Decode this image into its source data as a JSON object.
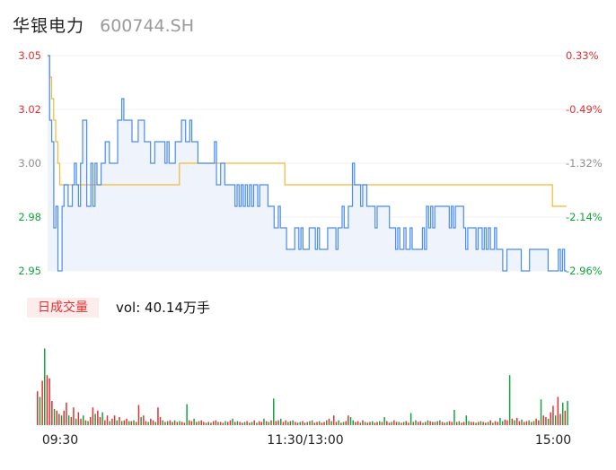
{
  "header": {
    "name": "华银电力",
    "code": "600744.SH"
  },
  "volume_panel": {
    "tag": "日成交量",
    "vol_prefix": "vol: ",
    "vol_value": "40.14万手"
  },
  "colors": {
    "price": "#4a8bf5",
    "avg": "#f5b733",
    "up": "#e0302f",
    "down": "#12a33c",
    "area": "#eef3fc"
  },
  "chart_data": [
    {
      "type": "line",
      "y_ticks_left": [
        "3.05",
        "3.02",
        "3.00",
        "2.98",
        "2.95"
      ],
      "y_ticks_right": [
        "0.33%",
        "-0.49%",
        "-1.32%",
        "-2.14%",
        "-2.96%"
      ],
      "ylim": [
        2.95,
        3.05
      ],
      "x_ticks": [
        "09:30",
        "11:30/13:00",
        "15:00"
      ],
      "series": [
        {
          "values": [
            3.05,
            3.02,
            3.01,
            2.97,
            2.98,
            2.95,
            2.95,
            2.98,
            2.99,
            2.99,
            2.98,
            2.98,
            2.99,
            3.0,
            2.99,
            2.98,
            3.0,
            3.02,
            3.02,
            2.98,
            2.98,
            3.0,
            2.98,
            3.0,
            2.99,
            2.99,
            3.0,
            3.0,
            3.01,
            3.01,
            3.0,
            3.0,
            3.0,
            3.0,
            3.02,
            3.02,
            3.03,
            3.02,
            3.02,
            3.02,
            3.02,
            3.01,
            3.01,
            3.01,
            3.02,
            3.02,
            3.02,
            3.01,
            3.01,
            3.01,
            3.0,
            3.0,
            3.01,
            3.01,
            3.01,
            3.01,
            3.01,
            3.0,
            3.01,
            3.0,
            3.0,
            3.0,
            3.01,
            3.01,
            3.01,
            3.02,
            3.02,
            3.01,
            3.01,
            3.02,
            3.01,
            3.01,
            3.01,
            3.0,
            3.0,
            3.0,
            3.0,
            3.0,
            3.0,
            3.0,
            3.0,
            3.01,
            2.99,
            2.99,
            3.0,
            3.0,
            2.99,
            2.99,
            2.99,
            2.99,
            2.99,
            2.98,
            2.99,
            2.98,
            2.99,
            2.98,
            2.99,
            2.98,
            2.99,
            2.98,
            2.99,
            2.99,
            2.98,
            2.99,
            2.99,
            2.99,
            2.99,
            2.98,
            2.98,
            2.98,
            2.97,
            2.97,
            2.98,
            2.97,
            2.97,
            2.97,
            2.96,
            2.96,
            2.96,
            2.96,
            2.97,
            2.97,
            2.96,
            2.97,
            2.96,
            2.96,
            2.96,
            2.97,
            2.97,
            2.97,
            2.96,
            2.97,
            2.96,
            2.96,
            2.96,
            2.96,
            2.97,
            2.97,
            2.97,
            2.97,
            2.96,
            2.97,
            2.97,
            2.98,
            2.97,
            2.97,
            2.98,
            2.98,
            3.0,
            2.99,
            2.99,
            2.99,
            2.98,
            2.99,
            2.99,
            2.98,
            2.98,
            2.98,
            2.98,
            2.97,
            2.98,
            2.98,
            2.98,
            2.98,
            2.98,
            2.98,
            2.97,
            2.97,
            2.97,
            2.96,
            2.97,
            2.96,
            2.96,
            2.97,
            2.96,
            2.96,
            2.97,
            2.96,
            2.96,
            2.96,
            2.96,
            2.96,
            2.97,
            2.96,
            2.98,
            2.97,
            2.98,
            2.97,
            2.98,
            2.98,
            2.98,
            2.98,
            2.98,
            2.98,
            2.98,
            2.97,
            2.98,
            2.97,
            2.98,
            2.98,
            2.98,
            2.98,
            2.97,
            2.96,
            2.97,
            2.97,
            2.97,
            2.97,
            2.96,
            2.97,
            2.97,
            2.96,
            2.97,
            2.96,
            2.97,
            2.96,
            2.96,
            2.97,
            2.96,
            2.96,
            2.96,
            2.95,
            2.95,
            2.96,
            2.96,
            2.96,
            2.96,
            2.96,
            2.96,
            2.96,
            2.95,
            2.95,
            2.95,
            2.95,
            2.96,
            2.96,
            2.96,
            2.96,
            2.96,
            2.96,
            2.96,
            2.96,
            2.96,
            2.95,
            2.95,
            2.95,
            2.95,
            2.95,
            2.96,
            2.95,
            2.96,
            2.95,
            2.95
          ]
        },
        {
          "values": [
            3.05,
            3.04,
            3.03,
            3.02,
            3.01,
            3.0,
            2.99,
            2.99,
            2.99,
            2.99,
            2.99,
            2.99,
            2.99,
            2.99,
            2.99,
            2.99,
            2.99,
            2.99,
            2.99,
            2.99,
            2.99,
            2.99,
            2.99,
            2.99,
            2.99,
            2.99,
            2.99,
            2.99,
            2.99,
            2.99,
            2.99,
            2.99,
            2.99,
            2.99,
            2.99,
            2.99,
            2.99,
            2.99,
            2.99,
            2.99,
            2.99,
            2.99,
            2.99,
            2.99,
            2.99,
            2.99,
            2.99,
            2.99,
            2.99,
            2.99,
            2.99,
            2.99,
            2.99,
            2.99,
            2.99,
            2.99,
            2.99,
            2.99,
            2.99,
            2.99,
            2.99,
            2.99,
            2.99,
            2.99,
            2.99,
            3.0,
            3.0,
            3.0,
            3.0,
            3.0,
            3.0,
            3.0,
            3.0,
            3.0,
            3.0,
            3.0,
            3.0,
            3.0,
            3.0,
            3.0,
            3.0,
            3.0,
            3.0,
            3.0,
            3.0,
            3.0,
            3.0,
            3.0,
            3.0,
            3.0,
            3.0,
            3.0,
            3.0,
            3.0,
            3.0,
            3.0,
            3.0,
            3.0,
            3.0,
            3.0,
            3.0,
            3.0,
            3.0,
            3.0,
            3.0,
            3.0,
            3.0,
            3.0,
            3.0,
            3.0,
            3.0,
            3.0,
            3.0,
            3.0,
            3.0,
            3.0,
            3.0,
            2.99,
            2.99,
            2.99,
            2.99,
            2.99,
            2.99,
            2.99,
            2.99,
            2.99,
            2.99,
            2.99,
            2.99,
            2.99,
            2.99,
            2.99,
            2.99,
            2.99,
            2.99,
            2.99,
            2.99,
            2.99,
            2.99,
            2.99,
            2.99,
            2.99,
            2.99,
            2.99,
            2.99,
            2.99,
            2.99,
            2.99,
            2.99,
            2.99,
            2.99,
            2.99,
            2.99,
            2.99,
            2.99,
            2.99,
            2.99,
            2.99,
            2.99,
            2.99,
            2.99,
            2.99,
            2.99,
            2.99,
            2.99,
            2.99,
            2.99,
            2.99,
            2.99,
            2.99,
            2.99,
            2.99,
            2.99,
            2.99,
            2.99,
            2.99,
            2.99,
            2.99,
            2.99,
            2.99,
            2.99,
            2.99,
            2.99,
            2.99,
            2.99,
            2.99,
            2.99,
            2.99,
            2.99,
            2.99,
            2.99,
            2.99,
            2.99,
            2.99,
            2.99,
            2.99,
            2.99,
            2.99,
            2.99,
            2.99,
            2.99,
            2.99,
            2.99,
            2.99,
            2.99,
            2.99,
            2.99,
            2.99,
            2.99,
            2.99,
            2.99,
            2.99,
            2.99,
            2.99,
            2.99,
            2.99,
            2.99,
            2.99,
            2.99,
            2.99,
            2.99,
            2.99,
            2.99,
            2.99,
            2.99,
            2.99,
            2.99,
            2.99,
            2.99,
            2.99,
            2.99,
            2.99,
            2.99,
            2.99,
            2.99,
            2.99,
            2.99,
            2.99,
            2.99,
            2.99,
            2.99,
            2.99,
            2.99,
            2.99,
            2.99,
            2.99,
            2.99,
            2.99,
            2.99,
            2.98,
            2.98,
            2.98,
            2.98,
            2.98,
            2.98,
            2.98,
            2.98
          ]
        }
      ]
    },
    {
      "type": "bar",
      "x_ticks": [
        "09:30",
        "11:30/13:00",
        "15:00"
      ],
      "volumes": [
        0.42,
        0.35,
        0.55,
        0.95,
        0.62,
        0.58,
        0.3,
        0.2,
        0.18,
        0.14,
        0.12,
        0.18,
        0.28,
        0.12,
        0.1,
        0.22,
        0.08,
        0.16,
        0.08,
        0.12,
        0.06,
        0.05,
        0.1,
        0.22,
        0.14,
        0.18,
        0.1,
        0.16,
        0.06,
        0.12,
        0.05,
        0.08,
        0.12,
        0.06,
        0.1,
        0.05,
        0.06,
        0.08,
        0.05,
        0.05,
        0.06,
        0.04,
        0.25,
        0.1,
        0.12,
        0.05,
        0.04,
        0.08,
        0.06,
        0.04,
        0.22,
        0.1,
        0.06,
        0.04,
        0.05,
        0.06,
        0.04,
        0.06,
        0.04,
        0.05,
        0.04,
        0.03,
        0.26,
        0.06,
        0.05,
        0.08,
        0.04,
        0.05,
        0.06,
        0.04,
        0.03,
        0.04,
        0.03,
        0.05,
        0.06,
        0.04,
        0.04,
        0.03,
        0.05,
        0.04,
        0.06,
        0.08,
        0.04,
        0.05,
        0.04,
        0.03,
        0.04,
        0.05,
        0.03,
        0.04,
        0.06,
        0.03,
        0.05,
        0.04,
        0.08,
        0.05,
        0.04,
        0.06,
        0.33,
        0.05,
        0.06,
        0.08,
        0.04,
        0.06,
        0.04,
        0.05,
        0.06,
        0.04,
        0.03,
        0.04,
        0.05,
        0.03,
        0.04,
        0.05,
        0.06,
        0.03,
        0.04,
        0.05,
        0.03,
        0.04,
        0.06,
        0.08,
        0.05,
        0.12,
        0.04,
        0.06,
        0.03,
        0.04,
        0.05,
        0.12,
        0.1,
        0.06,
        0.04,
        0.05,
        0.03,
        0.06,
        0.04,
        0.03,
        0.04,
        0.05,
        0.03,
        0.04,
        0.05,
        0.04,
        0.1,
        0.05,
        0.03,
        0.04,
        0.06,
        0.04,
        0.04,
        0.03,
        0.04,
        0.05,
        0.03,
        0.15,
        0.04,
        0.06,
        0.04,
        0.05,
        0.03,
        0.04,
        0.06,
        0.05,
        0.04,
        0.04,
        0.05,
        0.06,
        0.04,
        0.03,
        0.04,
        0.05,
        0.04,
        0.19,
        0.04,
        0.05,
        0.03,
        0.04,
        0.12,
        0.05,
        0.04,
        0.04,
        0.03,
        0.04,
        0.05,
        0.04,
        0.03,
        0.04,
        0.06,
        0.03,
        0.05,
        0.04,
        0.09,
        0.05,
        0.07,
        0.06,
        0.62,
        0.08,
        0.06,
        0.09,
        0.05,
        0.07,
        0.04,
        0.05,
        0.06,
        0.04,
        0.05,
        0.08,
        0.06,
        0.32,
        0.12,
        0.1,
        0.08,
        0.16,
        0.24,
        0.12,
        0.35,
        0.14,
        0.28,
        0.18,
        0.3
      ],
      "up": [
        true,
        false,
        true,
        false,
        true,
        true,
        true,
        false,
        true,
        true,
        false,
        true,
        true,
        false,
        true,
        true,
        false,
        true,
        true,
        false,
        true,
        false,
        true,
        true,
        false,
        true,
        true,
        false,
        true,
        true,
        false,
        true,
        true,
        false,
        true,
        false,
        true,
        true,
        false,
        true,
        false,
        true,
        true,
        false,
        true,
        true,
        false,
        true,
        true,
        false,
        true,
        true,
        false,
        true,
        false,
        true,
        true,
        false,
        true,
        false,
        true,
        true,
        false,
        true,
        true,
        false,
        true,
        false,
        true,
        true,
        false,
        true,
        false,
        true,
        true,
        false,
        true,
        true,
        false,
        true,
        true,
        false,
        true,
        false,
        true,
        true,
        false,
        true,
        true,
        false,
        true,
        false,
        true,
        true,
        false,
        true,
        false,
        true,
        false,
        true,
        true,
        false,
        true,
        true,
        false,
        true,
        false,
        true,
        true,
        false,
        true,
        true,
        false,
        true,
        false,
        true,
        true,
        false,
        true,
        true,
        false,
        true,
        false,
        true,
        true,
        false,
        true,
        false,
        true,
        true,
        false,
        false,
        true,
        true,
        false,
        true,
        false,
        true,
        true,
        false,
        true,
        true,
        false,
        true,
        false,
        true,
        true,
        false,
        true,
        true,
        false,
        true,
        false,
        true,
        true,
        false,
        true,
        false,
        true,
        true,
        false,
        true,
        false,
        true,
        true,
        false,
        true,
        false,
        true,
        true,
        false,
        true,
        true,
        false,
        true,
        false,
        true,
        true,
        false,
        false,
        true,
        true,
        false,
        true,
        false,
        true,
        true,
        false,
        true,
        false,
        true,
        true,
        false,
        false,
        true,
        true,
        false,
        true,
        false,
        true,
        true,
        false,
        true,
        true,
        false,
        true,
        false,
        true,
        true,
        false,
        true,
        true,
        false,
        true,
        true,
        false,
        true,
        true,
        false,
        true,
        false,
        true
      ]
    }
  ]
}
